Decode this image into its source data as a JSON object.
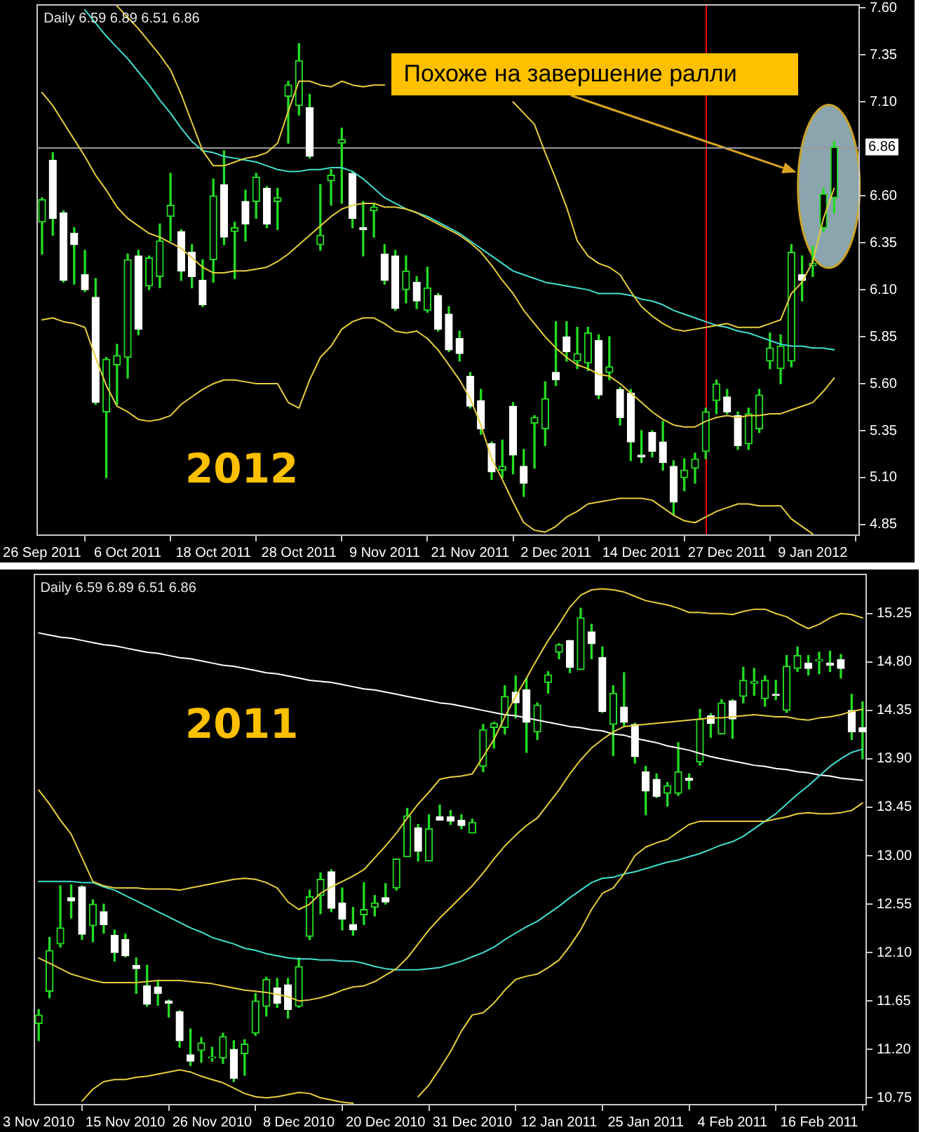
{
  "chart_data": [
    {
      "type": "candlestick",
      "annotations": [
        "Daily 6.59 6.89 6.51 6.86",
        "2012",
        "Похоже на завершение ралли"
      ],
      "categories": [
        "26 Sep 2011",
        null,
        null,
        null,
        null,
        null,
        null,
        null,
        "6 Oct 2011",
        null,
        null,
        null,
        null,
        null,
        null,
        null,
        "18 Oct 2011",
        null,
        null,
        null,
        null,
        null,
        null,
        null,
        "28 Oct 2011",
        null,
        null,
        null,
        null,
        null,
        null,
        null,
        "9 Nov 2011",
        null,
        null,
        null,
        null,
        null,
        null,
        null,
        "21 Nov 2011",
        null,
        null,
        null,
        null,
        null,
        null,
        null,
        "2 Dec 2011",
        null,
        null,
        null,
        null,
        null,
        null,
        null,
        "14 Dec 2011",
        null,
        null,
        null,
        null,
        null,
        null,
        null,
        "27 Dec 2011",
        null,
        null,
        null,
        null,
        null,
        null,
        null,
        "9 Jan 2012",
        null,
        null
      ],
      "ohlc": [
        [
          6.46,
          6.59,
          6.29,
          6.58
        ],
        [
          6.79,
          6.83,
          6.39,
          6.48
        ],
        [
          6.51,
          6.52,
          6.14,
          6.15
        ],
        [
          6.4,
          6.43,
          6.13,
          6.34
        ],
        [
          6.18,
          6.31,
          6.09,
          6.1
        ],
        [
          6.06,
          6.16,
          5.49,
          5.5
        ],
        [
          5.45,
          5.74,
          5.1,
          5.73
        ],
        [
          5.7,
          5.81,
          5.49,
          5.75
        ],
        [
          5.74,
          6.29,
          5.63,
          6.26
        ],
        [
          6.28,
          6.31,
          5.86,
          5.89
        ],
        [
          6.12,
          6.28,
          6.1,
          6.27
        ],
        [
          6.17,
          6.45,
          6.11,
          6.36
        ],
        [
          6.49,
          6.72,
          6.36,
          6.55
        ],
        [
          6.41,
          6.42,
          6.15,
          6.2
        ],
        [
          6.3,
          6.34,
          6.11,
          6.17
        ],
        [
          6.15,
          6.26,
          6.01,
          6.02
        ],
        [
          6.26,
          6.69,
          6.14,
          6.6
        ],
        [
          6.66,
          6.84,
          6.34,
          6.38
        ],
        [
          6.41,
          6.46,
          6.16,
          6.43
        ],
        [
          6.57,
          6.63,
          6.36,
          6.45
        ],
        [
          6.57,
          6.72,
          6.48,
          6.7
        ],
        [
          6.64,
          6.65,
          6.43,
          6.45
        ],
        [
          6.57,
          6.64,
          6.42,
          6.59
        ],
        [
          7.13,
          7.21,
          6.88,
          7.19
        ],
        [
          7.08,
          7.41,
          7.03,
          7.32
        ],
        [
          7.07,
          7.14,
          6.8,
          6.81
        ],
        [
          6.34,
          6.66,
          6.31,
          6.39
        ],
        [
          6.68,
          6.74,
          6.55,
          6.71
        ],
        [
          6.88,
          6.96,
          6.56,
          6.9
        ],
        [
          6.72,
          6.73,
          6.43,
          6.48
        ],
        [
          6.43,
          6.57,
          6.28,
          6.42
        ],
        [
          6.52,
          6.56,
          6.38,
          6.54
        ],
        [
          6.29,
          6.34,
          6.13,
          6.15
        ],
        [
          6.28,
          6.31,
          5.99,
          6.0
        ],
        [
          6.1,
          6.28,
          6.03,
          6.2
        ],
        [
          6.14,
          6.17,
          6.0,
          6.04
        ],
        [
          5.99,
          6.22,
          5.98,
          6.11
        ],
        [
          6.07,
          6.08,
          5.88,
          5.89
        ],
        [
          5.97,
          6.01,
          5.77,
          5.78
        ],
        [
          5.84,
          5.88,
          5.72,
          5.76
        ],
        [
          5.64,
          5.66,
          5.47,
          5.48
        ],
        [
          5.51,
          5.57,
          5.33,
          5.36
        ],
        [
          5.28,
          5.29,
          5.09,
          5.13
        ],
        [
          5.14,
          5.3,
          5.1,
          5.16
        ],
        [
          5.48,
          5.5,
          5.12,
          5.22
        ],
        [
          5.16,
          5.25,
          5.0,
          5.07
        ],
        [
          5.39,
          5.43,
          5.15,
          5.42
        ],
        [
          5.36,
          5.61,
          5.27,
          5.52
        ],
        [
          5.66,
          5.93,
          5.59,
          5.62
        ],
        [
          5.85,
          5.93,
          5.72,
          5.77
        ],
        [
          5.72,
          5.9,
          5.68,
          5.76
        ],
        [
          5.71,
          5.9,
          5.67,
          5.87
        ],
        [
          5.83,
          5.86,
          5.52,
          5.54
        ],
        [
          5.66,
          5.85,
          5.62,
          5.69
        ],
        [
          5.57,
          5.58,
          5.38,
          5.42
        ],
        [
          5.55,
          5.57,
          5.19,
          5.29
        ],
        [
          5.22,
          5.35,
          5.18,
          5.21
        ],
        [
          5.34,
          5.35,
          5.21,
          5.24
        ],
        [
          5.29,
          5.4,
          5.14,
          5.18
        ],
        [
          5.16,
          5.19,
          4.9,
          4.97
        ],
        [
          5.1,
          5.2,
          5.03,
          5.14
        ],
        [
          5.15,
          5.23,
          5.07,
          5.2
        ],
        [
          5.24,
          5.47,
          5.2,
          5.45
        ],
        [
          5.51,
          5.62,
          5.44,
          5.6
        ],
        [
          5.53,
          5.57,
          5.44,
          5.45
        ],
        [
          5.43,
          5.45,
          5.25,
          5.27
        ],
        [
          5.28,
          5.47,
          5.25,
          5.44
        ],
        [
          5.36,
          5.57,
          5.34,
          5.54
        ],
        [
          5.72,
          5.87,
          5.68,
          5.79
        ],
        [
          5.68,
          5.86,
          5.6,
          5.8
        ],
        [
          5.72,
          6.34,
          5.69,
          6.3
        ],
        [
          6.18,
          6.28,
          6.04,
          6.15
        ],
        [
          6.23,
          6.33,
          6.17,
          6.24
        ],
        [
          6.43,
          6.64,
          6.41,
          6.61
        ],
        [
          6.59,
          6.89,
          6.51,
          6.86
        ]
      ],
      "color": "#22dd22",
      "colors": [
        "#22dd22",
        "#ffffff",
        "#ffffff",
        "#ffffff",
        "#ffffff",
        "#ffffff",
        "#22dd22",
        "#22dd22",
        "#22dd22",
        "#ffffff",
        "#22dd22",
        "#22dd22",
        "#22dd22",
        "#ffffff",
        "#ffffff",
        "#ffffff",
        "#22dd22",
        "#ffffff",
        "#22dd22",
        "#ffffff",
        "#22dd22",
        "#ffffff",
        "#22dd22",
        "#22dd22",
        "#22dd22",
        "#ffffff",
        "#22dd22",
        "#22dd22",
        "#22dd22",
        "#ffffff",
        "#ffffff",
        "#22dd22",
        "#ffffff",
        "#ffffff",
        "#22dd22",
        "#ffffff",
        "#22dd22",
        "#ffffff",
        "#ffffff",
        "#ffffff",
        "#ffffff",
        "#ffffff",
        "#ffffff",
        "#22dd22",
        "#ffffff",
        "#ffffff",
        "#22dd22",
        "#22dd22",
        "#ffffff",
        "#ffffff",
        "#22dd22",
        "#22dd22",
        "#ffffff",
        "#22dd22",
        "#ffffff",
        "#ffffff",
        "#ffffff",
        "#ffffff",
        "#ffffff",
        "#ffffff",
        "#22dd22",
        "#22dd22",
        "#22dd22",
        "#22dd22",
        "#ffffff",
        "#ffffff",
        "#22dd22",
        "#22dd22",
        "#22dd22",
        "#22dd22",
        "#22dd22",
        "#ffffff",
        "#22dd22",
        "#22dd22",
        "#22dd22"
      ],
      "series": [
        {
          "type": "line",
          "color": "#e6cf3c",
          "values": [
            null,
            null,
            null,
            null,
            null,
            null,
            null,
            7.61,
            7.55,
            7.49,
            7.42,
            7.35,
            7.27,
            7.14,
            6.99,
            6.84,
            6.76,
            6.76,
            6.78,
            6.8,
            6.81,
            6.83,
            6.88,
            7.05,
            7.21,
            7.21,
            7.19,
            7.18,
            7.21,
            7.19,
            7.18,
            7.19,
            7.19,
            null,
            null,
            null,
            null,
            null,
            null,
            null,
            null,
            null,
            null,
            null,
            7.1,
            7.04,
            6.98,
            6.83,
            6.69,
            6.54,
            6.36,
            6.28,
            6.24,
            6.22,
            6.18,
            6.09,
            6.01,
            5.96,
            5.92,
            5.89,
            5.88,
            5.89,
            5.9,
            5.91,
            5.92,
            5.9,
            5.9,
            5.9,
            5.92,
            5.94,
            6.08,
            6.14,
            6.25,
            6.48,
            6.64
          ]
        },
        {
          "type": "line",
          "color": "#e6cf3c",
          "values": [
            7.15,
            7.08,
            6.99,
            6.9,
            6.81,
            6.71,
            6.63,
            6.54,
            6.48,
            6.44,
            6.4,
            6.38,
            6.35,
            6.32,
            6.27,
            6.22,
            6.19,
            6.19,
            6.2,
            6.2,
            6.21,
            6.22,
            6.25,
            6.29,
            6.34,
            6.39,
            6.44,
            6.49,
            6.53,
            6.55,
            6.56,
            6.56,
            6.54,
            6.54,
            6.53,
            6.51,
            6.48,
            6.45,
            6.42,
            6.39,
            6.35,
            6.3,
            6.23,
            6.15,
            6.08,
            5.99,
            5.92,
            5.85,
            5.79,
            5.74,
            5.7,
            5.68,
            5.65,
            5.64,
            5.6,
            5.55,
            5.5,
            5.45,
            5.41,
            5.38,
            5.37,
            5.37,
            5.4,
            5.42,
            5.43,
            5.42,
            5.43,
            5.43,
            5.44,
            5.44,
            5.46,
            5.48,
            5.5,
            5.56,
            5.63
          ]
        },
        {
          "type": "line",
          "color": "#e6cf3c",
          "values": [
            5.94,
            5.95,
            5.93,
            5.92,
            5.9,
            5.74,
            5.59,
            5.48,
            5.45,
            5.41,
            5.4,
            5.41,
            5.43,
            5.49,
            5.53,
            5.57,
            5.6,
            5.62,
            5.62,
            5.61,
            5.6,
            5.6,
            5.6,
            5.5,
            5.47,
            5.62,
            5.74,
            5.8,
            5.89,
            5.93,
            5.95,
            5.95,
            5.92,
            5.88,
            5.87,
            5.88,
            5.84,
            5.78,
            5.7,
            5.62,
            5.52,
            5.38,
            5.2,
            5.09,
            4.97,
            4.86,
            4.82,
            4.81,
            4.84,
            4.89,
            4.92,
            4.96,
            4.97,
            4.98,
            4.99,
            4.99,
            4.99,
            4.98,
            4.94,
            4.9,
            4.87,
            4.86,
            4.89,
            4.92,
            4.94,
            4.96,
            4.96,
            4.95,
            4.95,
            4.95,
            4.88,
            4.84,
            4.8,
            null,
            null
          ]
        },
        {
          "type": "line",
          "color": "#40e0d0",
          "values": [
            null,
            null,
            null,
            null,
            7.59,
            7.52,
            7.45,
            7.39,
            7.33,
            7.26,
            7.19,
            7.11,
            7.04,
            6.96,
            6.89,
            6.84,
            6.83,
            6.81,
            6.8,
            6.79,
            6.78,
            6.76,
            6.74,
            6.73,
            6.73,
            6.74,
            6.74,
            6.75,
            6.75,
            6.73,
            6.69,
            6.64,
            6.59,
            6.56,
            6.53,
            6.51,
            6.49,
            6.46,
            6.43,
            6.4,
            6.36,
            6.32,
            6.28,
            6.24,
            6.2,
            6.18,
            6.16,
            6.14,
            6.13,
            6.12,
            6.11,
            6.1,
            6.08,
            6.08,
            6.08,
            6.07,
            6.05,
            6.04,
            6.02,
            5.99,
            5.97,
            5.95,
            5.93,
            5.91,
            5.9,
            5.88,
            5.87,
            5.85,
            5.83,
            5.81,
            5.8,
            5.8,
            5.79,
            5.79,
            5.78
          ]
        }
      ],
      "ylim": [
        4.79,
        7.62
      ],
      "yticks": [
        4.85,
        {
          "value": 5.1,
          "label": "5.10"
        },
        5.35,
        {
          "value": 5.6,
          "label": "5.60"
        },
        5.85,
        {
          "value": 6.1,
          "label": "6.10"
        },
        6.35,
        {
          "value": 6.6,
          "label": "6.60"
        },
        {
          "value": 7.1,
          "label": "7.10"
        },
        7.35,
        {
          "value": 7.6,
          "label": "7.60"
        }
      ],
      "ref_lines": [
        {
          "axis": "y",
          "value": 6.86,
          "label": "6.86",
          "color": "#9a9a9a"
        }
      ],
      "grid": false,
      "legend": false,
      "marker": "none",
      "line_style": "solid"
    },
    {
      "type": "candlestick",
      "annotations": [
        "Daily 6.59 6.89 6.51 6.86",
        "2011"
      ],
      "categories": [
        "3 Nov 2010",
        null,
        null,
        null,
        null,
        null,
        null,
        null,
        "15 Nov 2010",
        null,
        null,
        null,
        null,
        null,
        null,
        null,
        "26 Nov 2010",
        null,
        null,
        null,
        null,
        null,
        null,
        null,
        "8 Dec 2010",
        null,
        null,
        null,
        null,
        null,
        null,
        null,
        "20 Dec 2010",
        null,
        null,
        null,
        null,
        null,
        null,
        null,
        "31 Dec 2010",
        null,
        null,
        null,
        null,
        null,
        null,
        null,
        "12 Jan 2011",
        null,
        null,
        null,
        null,
        null,
        null,
        null,
        "25 Jan 2011",
        null,
        null,
        null,
        null,
        null,
        null,
        null,
        "4 Feb 2011",
        null,
        null,
        null,
        null,
        null,
        null,
        null,
        "16 Feb 2011",
        null,
        null,
        null,
        null
      ],
      "ohlc": [
        [
          11.44,
          11.57,
          11.28,
          11.52
        ],
        [
          11.74,
          12.24,
          11.68,
          12.12
        ],
        [
          12.18,
          12.72,
          12.15,
          12.33
        ],
        [
          12.61,
          12.73,
          12.42,
          12.58
        ],
        [
          12.71,
          12.72,
          12.22,
          12.27
        ],
        [
          12.35,
          12.59,
          12.2,
          12.55
        ],
        [
          12.48,
          12.55,
          12.28,
          12.36
        ],
        [
          12.26,
          12.31,
          12.02,
          12.1
        ],
        [
          12.22,
          12.27,
          12.06,
          12.07
        ],
        [
          11.98,
          12.05,
          11.72,
          11.95
        ],
        [
          11.79,
          11.98,
          11.6,
          11.62
        ],
        [
          11.78,
          11.83,
          11.61,
          11.72
        ],
        [
          11.65,
          11.66,
          11.5,
          11.63
        ],
        [
          11.55,
          11.56,
          11.22,
          11.28
        ],
        [
          11.15,
          11.39,
          11.05,
          11.09
        ],
        [
          11.19,
          11.31,
          11.08,
          11.26
        ],
        [
          11.12,
          11.22,
          11.09,
          11.13
        ],
        [
          11.12,
          11.35,
          11.07,
          11.32
        ],
        [
          11.2,
          11.28,
          10.9,
          10.93
        ],
        [
          11.16,
          11.29,
          10.96,
          11.25
        ],
        [
          11.35,
          11.72,
          11.33,
          11.65
        ],
        [
          11.6,
          11.87,
          11.51,
          11.85
        ],
        [
          11.77,
          11.86,
          11.59,
          11.63
        ],
        [
          11.8,
          11.86,
          11.49,
          11.57
        ],
        [
          11.6,
          12.05,
          11.59,
          11.97
        ],
        [
          12.25,
          12.68,
          12.22,
          12.62
        ],
        [
          12.63,
          12.84,
          12.46,
          12.78
        ],
        [
          12.85,
          12.87,
          12.48,
          12.51
        ],
        [
          12.56,
          12.7,
          12.31,
          12.41
        ],
        [
          12.36,
          12.52,
          12.26,
          12.31
        ],
        [
          12.45,
          12.75,
          12.36,
          12.5
        ],
        [
          12.52,
          12.63,
          12.44,
          12.56
        ],
        [
          12.61,
          12.74,
          12.55,
          12.57
        ],
        [
          12.7,
          12.97,
          12.68,
          12.97
        ],
        [
          12.99,
          13.44,
          12.99,
          13.37
        ],
        [
          13.26,
          13.29,
          12.95,
          13.04
        ],
        [
          12.95,
          13.38,
          12.95,
          13.25
        ],
        [
          13.36,
          13.47,
          13.33,
          13.33
        ],
        [
          13.36,
          13.42,
          13.29,
          13.32
        ],
        [
          13.33,
          13.38,
          13.25,
          13.28
        ],
        [
          13.21,
          13.34,
          13.21,
          13.31
        ],
        [
          13.83,
          14.22,
          13.78,
          14.17
        ],
        [
          14.19,
          14.24,
          14.0,
          14.23
        ],
        [
          14.19,
          14.58,
          14.13,
          14.48
        ],
        [
          14.52,
          14.67,
          14.28,
          14.42
        ],
        [
          14.54,
          14.65,
          13.96,
          14.24
        ],
        [
          14.15,
          14.42,
          14.08,
          14.4
        ],
        [
          14.61,
          14.71,
          14.51,
          14.68
        ],
        [
          14.89,
          14.97,
          14.83,
          14.96
        ],
        [
          15.0,
          15.0,
          14.7,
          14.75
        ],
        [
          14.73,
          15.3,
          14.73,
          15.21
        ],
        [
          15.08,
          15.15,
          14.83,
          14.97
        ],
        [
          14.84,
          14.94,
          14.33,
          14.34
        ],
        [
          14.22,
          14.58,
          13.93,
          14.51
        ],
        [
          14.38,
          14.7,
          14.21,
          14.24
        ],
        [
          14.22,
          14.23,
          13.86,
          13.92
        ],
        [
          13.78,
          13.83,
          13.38,
          13.6
        ],
        [
          13.71,
          13.76,
          13.54,
          13.55
        ],
        [
          13.58,
          13.68,
          13.46,
          13.65
        ],
        [
          13.58,
          14.05,
          13.56,
          13.78
        ],
        [
          13.72,
          13.76,
          13.62,
          13.7
        ],
        [
          13.87,
          14.36,
          13.84,
          14.27
        ],
        [
          14.3,
          14.32,
          14.1,
          14.23
        ],
        [
          14.13,
          14.45,
          14.13,
          14.42
        ],
        [
          14.44,
          14.45,
          14.09,
          14.27
        ],
        [
          14.48,
          14.75,
          14.42,
          14.63
        ],
        [
          14.6,
          14.74,
          14.49,
          14.62
        ],
        [
          14.46,
          14.67,
          14.39,
          14.63
        ],
        [
          14.5,
          14.63,
          14.45,
          14.49
        ],
        [
          14.35,
          14.86,
          14.33,
          14.76
        ],
        [
          14.74,
          14.94,
          14.71,
          14.86
        ],
        [
          14.79,
          14.86,
          14.68,
          14.74
        ],
        [
          14.81,
          14.89,
          14.69,
          14.82
        ],
        [
          14.79,
          14.9,
          14.71,
          14.77
        ],
        [
          14.82,
          14.87,
          14.65,
          14.74
        ],
        [
          14.35,
          14.5,
          14.08,
          14.15
        ],
        [
          14.19,
          14.43,
          13.9,
          14.15
        ]
      ],
      "color": "#22dd22",
      "colors": [
        "#22dd22",
        "#22dd22",
        "#22dd22",
        "#ffffff",
        "#ffffff",
        "#22dd22",
        "#ffffff",
        "#ffffff",
        "#ffffff",
        "#ffffff",
        "#ffffff",
        "#ffffff",
        "#ffffff",
        "#ffffff",
        "#ffffff",
        "#22dd22",
        "#22dd22",
        "#22dd22",
        "#ffffff",
        "#22dd22",
        "#22dd22",
        "#22dd22",
        "#ffffff",
        "#ffffff",
        "#22dd22",
        "#22dd22",
        "#22dd22",
        "#ffffff",
        "#ffffff",
        "#ffffff",
        "#22dd22",
        "#22dd22",
        "#ffffff",
        "#22dd22",
        "#22dd22",
        "#ffffff",
        "#22dd22",
        "#ffffff",
        "#ffffff",
        "#ffffff",
        "#22dd22",
        "#22dd22",
        "#22dd22",
        "#22dd22",
        "#ffffff",
        "#ffffff",
        "#22dd22",
        "#22dd22",
        "#22dd22",
        "#ffffff",
        "#22dd22",
        "#ffffff",
        "#ffffff",
        "#22dd22",
        "#ffffff",
        "#ffffff",
        "#ffffff",
        "#ffffff",
        "#22dd22",
        "#22dd22",
        "#ffffff",
        "#22dd22",
        "#ffffff",
        "#22dd22",
        "#ffffff",
        "#22dd22",
        "#22dd22",
        "#22dd22",
        "#ffffff",
        "#22dd22",
        "#22dd22",
        "#ffffff",
        "#22dd22",
        "#ffffff",
        "#ffffff",
        "#ffffff",
        "#ffffff"
      ],
      "series": [
        {
          "type": "line",
          "color": "#e6cf3c",
          "values": [
            13.61,
            13.48,
            13.33,
            13.2,
            12.98,
            12.76,
            12.72,
            12.7,
            12.7,
            12.7,
            12.69,
            12.69,
            12.69,
            12.68,
            12.7,
            12.72,
            12.74,
            12.76,
            12.78,
            12.79,
            12.78,
            12.75,
            12.7,
            12.57,
            12.5,
            12.55,
            12.65,
            12.71,
            12.76,
            12.81,
            12.87,
            12.98,
            13.09,
            13.21,
            13.35,
            13.48,
            13.59,
            13.71,
            13.73,
            13.74,
            13.76,
            13.92,
            14.08,
            14.29,
            14.48,
            14.65,
            14.83,
            15.0,
            15.15,
            15.31,
            15.42,
            15.47,
            15.48,
            15.47,
            15.45,
            15.41,
            15.37,
            15.35,
            15.33,
            15.3,
            15.26,
            15.26,
            15.25,
            15.25,
            15.24,
            15.27,
            15.29,
            15.29,
            15.25,
            15.22,
            15.16,
            15.11,
            15.15,
            15.21,
            15.25,
            15.24,
            15.21
          ]
        },
        {
          "type": "line",
          "color": "#e6cf3c",
          "values": [
            12.05,
            12.0,
            11.95,
            11.9,
            11.87,
            11.84,
            11.82,
            11.82,
            11.82,
            11.82,
            11.83,
            11.84,
            11.84,
            11.84,
            11.83,
            11.82,
            11.81,
            11.79,
            11.77,
            11.75,
            11.74,
            11.73,
            11.71,
            11.69,
            11.65,
            11.66,
            11.68,
            11.71,
            11.75,
            11.78,
            11.79,
            11.83,
            11.89,
            11.95,
            12.05,
            12.18,
            12.31,
            12.42,
            12.52,
            12.62,
            12.72,
            12.84,
            12.97,
            13.09,
            13.19,
            13.28,
            13.35,
            13.48,
            13.61,
            13.76,
            13.89,
            14.0,
            14.08,
            14.15,
            14.2,
            14.21,
            14.22,
            14.23,
            14.24,
            14.25,
            14.26,
            14.27,
            14.28,
            14.28,
            14.29,
            14.3,
            14.31,
            14.3,
            14.29,
            14.29,
            14.27,
            14.26,
            14.28,
            14.29,
            14.31,
            14.34,
            14.36
          ]
        },
        {
          "type": "line",
          "color": "#e6cf3c",
          "values": [
            null,
            null,
            null,
            null,
            10.72,
            10.83,
            10.9,
            10.92,
            10.92,
            10.94,
            10.95,
            10.97,
            10.99,
            11.01,
            10.99,
            10.95,
            10.92,
            10.89,
            10.84,
            10.79,
            10.76,
            10.75,
            10.76,
            10.78,
            10.8,
            10.79,
            10.75,
            10.73,
            10.71,
            10.7,
            null,
            null,
            null,
            null,
            null,
            10.76,
            10.87,
            11.02,
            11.18,
            11.37,
            11.52,
            11.54,
            11.63,
            11.75,
            11.85,
            11.88,
            11.9,
            11.96,
            12.03,
            12.16,
            12.31,
            12.5,
            12.65,
            12.7,
            12.83,
            13.0,
            13.08,
            13.12,
            13.15,
            13.22,
            13.29,
            13.32,
            13.32,
            13.32,
            13.32,
            13.32,
            13.32,
            13.32,
            13.34,
            13.36,
            13.39,
            13.4,
            13.39,
            13.39,
            13.4,
            13.42,
            13.49
          ]
        },
        {
          "type": "line",
          "color": "#40e0d0",
          "values": [
            12.76,
            12.76,
            12.76,
            12.76,
            12.75,
            12.75,
            12.71,
            12.68,
            12.63,
            12.58,
            12.53,
            12.48,
            12.43,
            12.38,
            12.33,
            12.29,
            12.24,
            12.21,
            12.18,
            12.14,
            12.12,
            12.09,
            12.07,
            12.05,
            12.04,
            12.04,
            12.03,
            12.03,
            12.02,
            12.02,
            12.0,
            11.97,
            11.95,
            11.94,
            11.94,
            11.94,
            11.95,
            11.96,
            11.99,
            12.02,
            12.06,
            12.1,
            12.15,
            12.22,
            12.28,
            12.34,
            12.39,
            12.46,
            12.53,
            12.61,
            12.68,
            12.75,
            12.79,
            12.8,
            12.83,
            12.85,
            12.88,
            12.91,
            12.94,
            12.96,
            12.99,
            13.02,
            13.06,
            13.1,
            13.13,
            13.18,
            13.25,
            13.32,
            13.39,
            13.48,
            13.57,
            13.65,
            13.74,
            13.83,
            13.9,
            13.96,
            13.99
          ]
        },
        {
          "type": "line",
          "color": "#ffffff",
          "values": [
            15.07,
            15.05,
            15.03,
            15.02,
            15.0,
            14.98,
            14.96,
            14.95,
            14.93,
            14.91,
            14.89,
            14.88,
            14.86,
            14.84,
            14.83,
            14.81,
            14.79,
            14.77,
            14.76,
            14.74,
            14.72,
            14.7,
            14.69,
            14.67,
            14.65,
            14.63,
            14.62,
            14.61,
            14.59,
            14.57,
            14.55,
            14.54,
            14.52,
            14.5,
            14.48,
            14.46,
            14.44,
            14.42,
            14.41,
            14.39,
            14.37,
            14.35,
            14.33,
            14.31,
            14.3,
            14.28,
            14.26,
            14.24,
            14.22,
            14.2,
            14.19,
            14.17,
            14.16,
            14.13,
            14.12,
            14.09,
            14.07,
            14.05,
            14.02,
            14.0,
            13.98,
            13.95,
            13.92,
            13.9,
            13.88,
            13.86,
            13.84,
            13.83,
            13.81,
            13.8,
            13.78,
            13.77,
            13.75,
            13.74,
            13.72,
            13.71,
            13.7
          ]
        }
      ],
      "ylim": [
        10.68,
        15.62
      ],
      "yticks": [
        10.75,
        {
          "value": 11.2,
          "label": "11.20"
        },
        11.65,
        {
          "value": 12.1,
          "label": "12.10"
        },
        12.55,
        {
          "value": 13,
          "label": "13.00"
        },
        13.45,
        {
          "value": 13.9,
          "label": "13.90"
        },
        14.35,
        {
          "value": 14.8,
          "label": "14.80"
        },
        15.25
      ],
      "grid": false,
      "legend": false,
      "marker": "none",
      "line_style": "solid"
    }
  ]
}
